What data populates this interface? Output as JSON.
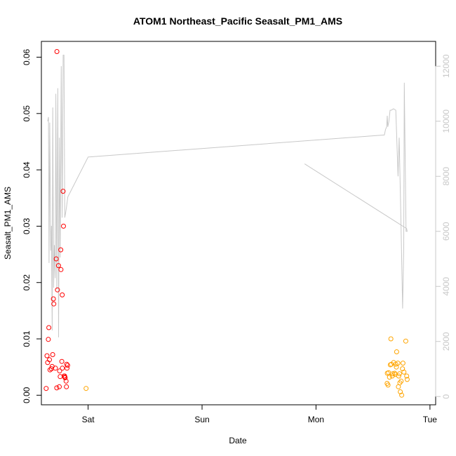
{
  "chart_data": {
    "type": "scatter",
    "title": "ATOM1 Northeast_Pacific Seasalt_PM1_AMS",
    "xlabel": "Date",
    "ylabel": "Seasalt_PM1_AMS",
    "x_ticks": [
      "Sat",
      "Sun",
      "Mon",
      "Tue"
    ],
    "x_range_days": [
      -0.41,
      3.05
    ],
    "ylim": [
      -0.0017,
      0.0628
    ],
    "y_ticks": [
      0.0,
      0.01,
      0.02,
      0.03,
      0.04,
      0.05,
      0.06
    ],
    "y_tick_labels": [
      "0.00",
      "0.01",
      "0.02",
      "0.03",
      "0.04",
      "0.05",
      "0.06"
    ],
    "y2lim": [
      -300,
      12900
    ],
    "y2_ticks": [
      0,
      2000,
      4000,
      6000,
      8000,
      10000,
      12000
    ],
    "y2_tick_labels": [
      "0",
      "2000",
      "4000",
      "6000",
      "8000",
      "10000",
      "12000"
    ],
    "grid": false,
    "legend": "none",
    "series": [
      {
        "color": "#ff0000",
        "x": [
          -0.368,
          -0.361,
          -0.355,
          -0.349,
          -0.345,
          -0.339,
          -0.334,
          -0.322,
          -0.316,
          -0.311,
          -0.305,
          -0.301,
          -0.287,
          -0.28,
          -0.275,
          -0.274,
          -0.269,
          -0.26,
          -0.253,
          -0.25,
          -0.245,
          -0.24,
          -0.238,
          -0.231,
          -0.226,
          -0.227,
          -0.22,
          -0.216,
          -0.21,
          -0.206,
          -0.204,
          -0.202,
          -0.193,
          -0.19,
          -0.188,
          -0.185,
          -0.18,
          -0.018
        ],
        "y": [
          0.0012,
          0.007,
          0.0058,
          0.0099,
          0.012,
          0.0063,
          0.0045,
          0.0047,
          0.0051,
          0.0072,
          0.0171,
          0.0162,
          0.0048,
          0.0242,
          0.0013,
          0.061,
          0.0187,
          0.023,
          0.0015,
          0.0043,
          0.0033,
          0.0258,
          0.0223,
          0.006,
          0.0048,
          0.0178,
          0.0362,
          0.03,
          0.0034,
          0.0034,
          0.0032,
          0.0031,
          0.0025,
          0.0015,
          0.0055,
          0.0048,
          0.0053,
          0.0012
        ],
        "note_last_point_color": "#ffa500"
      },
      {
        "color": "#ffa500",
        "x": [
          2.624,
          2.626,
          2.632,
          2.637,
          2.645,
          2.652,
          2.657,
          2.661,
          2.669,
          2.673,
          2.681,
          2.69,
          2.695,
          2.7,
          2.705,
          2.708,
          2.718,
          2.723,
          2.726,
          2.733,
          2.736,
          2.74,
          2.747,
          2.752,
          2.759,
          2.763,
          2.772,
          2.788,
          2.796,
          2.8
        ],
        "y": [
          0.0021,
          0.0039,
          0.0018,
          0.004,
          0.0032,
          0.0054,
          0.01,
          0.0055,
          0.0034,
          0.0038,
          0.0058,
          0.0039,
          0.0037,
          0.0055,
          0.005,
          0.0077,
          0.0057,
          0.0015,
          0.0034,
          0.0038,
          0.0022,
          0.0006,
          0.0025,
          0.0,
          0.0047,
          0.0057,
          0.0041,
          0.0096,
          0.0034,
          0.0028
        ]
      },
      {
        "color": "#c8c8c8",
        "type": "line",
        "axis": "right",
        "x": [
          -0.355,
          -0.348,
          -0.343,
          -0.337,
          -0.328,
          -0.322,
          -0.315,
          -0.31,
          -0.303,
          -0.296,
          -0.289,
          -0.283,
          -0.275,
          -0.266,
          -0.259,
          -0.252,
          -0.245,
          -0.236,
          -0.228,
          -0.219,
          -0.212,
          -0.205,
          -0.198,
          -0.191,
          -0.183,
          -0.178,
          0.0,
          2.6,
          2.61,
          2.62,
          2.625,
          2.63,
          2.64,
          2.65,
          2.66,
          2.68,
          2.7,
          2.72,
          2.73,
          2.745,
          2.76,
          2.77,
          2.775,
          2.78,
          2.79,
          2.8,
          2.795,
          1.9
        ],
        "y": [
          10000,
          10150,
          4850,
          9950,
          5300,
          6200,
          2400,
          10500,
          3950,
          5500,
          4300,
          11000,
          3900,
          11200,
          2150,
          9400,
          5050,
          12000,
          6500,
          12400,
          12400,
          6500,
          6650,
          6850,
          7100,
          7250,
          8700,
          9500,
          9700,
          9800,
          10200,
          9800,
          10000,
          10400,
          10400,
          10450,
          10400,
          8000,
          9400,
          6400,
          3200,
          5400,
          11400,
          9600,
          6000,
          6000,
          6100,
          8450
        ]
      }
    ]
  }
}
